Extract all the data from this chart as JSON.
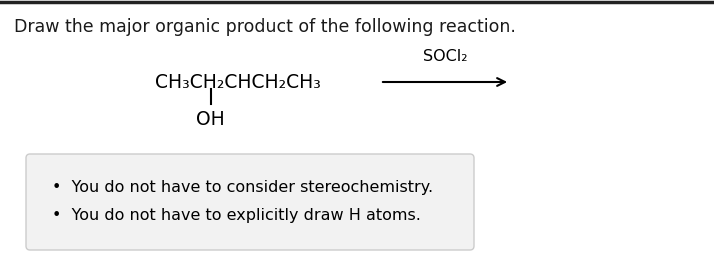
{
  "title_text": "Draw the major organic product of the following reaction.",
  "title_fontsize": 12.5,
  "title_color": "#1a1a1a",
  "background_color": "#ffffff",
  "top_border_color": "#222222",
  "reagent_formula": "CH₃CH₂CHCH₂CH₃",
  "reagent_fontsize": 13.5,
  "soci2_text": "SOCl₂",
  "soci2_fontsize": 11.5,
  "bullet1": "You do not have to consider stereochemistry.",
  "bullet2": "You do not have to explicitly draw H atoms.",
  "bullet_fontsize": 11.5,
  "box_facecolor": "#f2f2f2",
  "box_edgecolor": "#cccccc"
}
